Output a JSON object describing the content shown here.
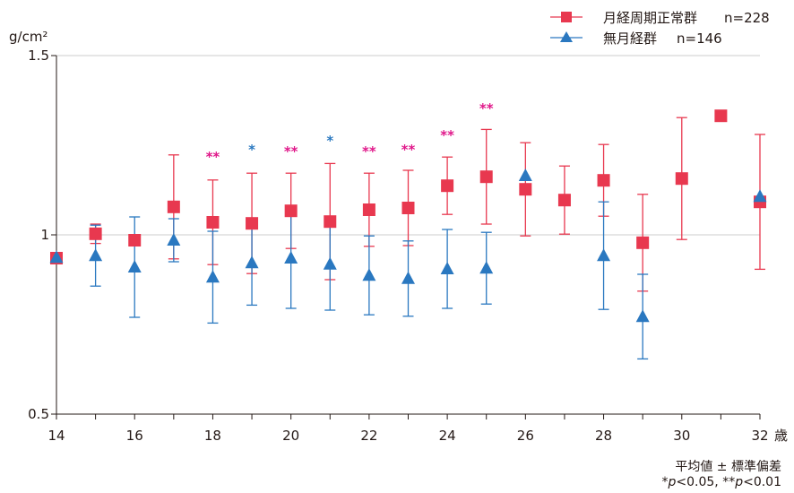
{
  "chart_data": {
    "type": "scatter",
    "ylabel": "g/cm²",
    "ylim": [
      0.5,
      1.5
    ],
    "yticks": [
      {
        "value": 0.5,
        "label": "0.5"
      },
      {
        "value": 1.0,
        "label": "1"
      },
      {
        "value": 1.5,
        "label": "1.5"
      }
    ],
    "xlim": [
      14,
      32
    ],
    "xticks": [
      {
        "value": 14,
        "label": "14"
      },
      {
        "value": 16,
        "label": "16"
      },
      {
        "value": 18,
        "label": "18"
      },
      {
        "value": 20,
        "label": "20"
      },
      {
        "value": 22,
        "label": "22"
      },
      {
        "value": 24,
        "label": "24"
      },
      {
        "value": 26,
        "label": "26"
      },
      {
        "value": 28,
        "label": "28"
      },
      {
        "value": 30,
        "label": "30"
      },
      {
        "value": 32,
        "label": "32"
      }
    ],
    "xunit": "歳",
    "grid": {
      "y": true,
      "x": false
    },
    "legend_position": "top-right",
    "series": [
      {
        "name": "月経周期正常群",
        "n_label": "n=228",
        "color": "#e8384f",
        "marker": "square",
        "points": [
          {
            "x": 14,
            "y": 0.935,
            "err": null
          },
          {
            "x": 15,
            "y": 1.003,
            "err": 0.027
          },
          {
            "x": 16,
            "y": 0.985,
            "err": null
          },
          {
            "x": 17,
            "y": 1.078,
            "err": 0.145
          },
          {
            "x": 18,
            "y": 1.035,
            "err": 0.118
          },
          {
            "x": 19,
            "y": 1.032,
            "err": 0.14
          },
          {
            "x": 20,
            "y": 1.067,
            "err": 0.105
          },
          {
            "x": 21,
            "y": 1.037,
            "err": 0.162
          },
          {
            "x": 22,
            "y": 1.07,
            "err": 0.102
          },
          {
            "x": 23,
            "y": 1.075,
            "err": 0.105
          },
          {
            "x": 24,
            "y": 1.137,
            "err": 0.08
          },
          {
            "x": 25,
            "y": 1.162,
            "err": 0.132
          },
          {
            "x": 26,
            "y": 1.127,
            "err": 0.13
          },
          {
            "x": 27,
            "y": 1.097,
            "err": 0.095
          },
          {
            "x": 28,
            "y": 1.152,
            "err": 0.1
          },
          {
            "x": 29,
            "y": 0.978,
            "err": 0.135
          },
          {
            "x": 30,
            "y": 1.157,
            "err": 0.17
          },
          {
            "x": 31,
            "y": 1.332,
            "err": null
          },
          {
            "x": 32,
            "y": 1.092,
            "err": 0.188
          }
        ]
      },
      {
        "name": "無月経群",
        "n_label": "n=146",
        "color": "#2a78c0",
        "marker": "triangle",
        "points": [
          {
            "x": 14,
            "y": 0.937,
            "err": null
          },
          {
            "x": 15,
            "y": 0.942,
            "err": 0.085
          },
          {
            "x": 16,
            "y": 0.91,
            "err": 0.14
          },
          {
            "x": 17,
            "y": 0.985,
            "err": 0.06
          },
          {
            "x": 18,
            "y": 0.882,
            "err": 0.128
          },
          {
            "x": 19,
            "y": 0.922,
            "err": 0.118
          },
          {
            "x": 20,
            "y": 0.935,
            "err": 0.14
          },
          {
            "x": 21,
            "y": 0.918,
            "err": 0.128
          },
          {
            "x": 22,
            "y": 0.887,
            "err": 0.11
          },
          {
            "x": 23,
            "y": 0.878,
            "err": 0.105
          },
          {
            "x": 24,
            "y": 0.905,
            "err": 0.11
          },
          {
            "x": 25,
            "y": 0.907,
            "err": 0.1
          },
          {
            "x": 26,
            "y": 1.165,
            "err": null
          },
          {
            "x": 28,
            "y": 0.942,
            "err": 0.15
          },
          {
            "x": 29,
            "y": 0.772,
            "err": 0.118
          },
          {
            "x": 32,
            "y": 1.107,
            "err": null
          }
        ]
      }
    ],
    "significance": [
      {
        "x": 18,
        "label": "**",
        "y": 1.205,
        "color": "#e0188a"
      },
      {
        "x": 19,
        "label": "*",
        "y": 1.225,
        "color": "#2a78c0"
      },
      {
        "x": 20,
        "label": "**",
        "y": 1.22,
        "color": "#e0188a"
      },
      {
        "x": 21,
        "label": "*",
        "y": 1.25,
        "color": "#2a78c0"
      },
      {
        "x": 22,
        "label": "**",
        "y": 1.22,
        "color": "#e0188a"
      },
      {
        "x": 23,
        "label": "**",
        "y": 1.225,
        "color": "#e0188a"
      },
      {
        "x": 24,
        "label": "**",
        "y": 1.265,
        "color": "#e0188a"
      },
      {
        "x": 25,
        "label": "**",
        "y": 1.34,
        "color": "#e0188a"
      }
    ],
    "footnote": {
      "line1": "平均値 ± 標準偏差",
      "p1_prefix": "*",
      "p1_text": "<0.05, ",
      "p2_prefix": "**",
      "p2_text": "<0.01",
      "p_symbol": "p"
    }
  }
}
